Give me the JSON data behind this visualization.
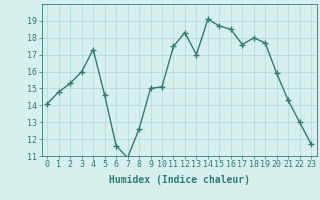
{
  "x": [
    0,
    1,
    2,
    3,
    4,
    5,
    6,
    7,
    8,
    9,
    10,
    11,
    12,
    13,
    14,
    15,
    16,
    17,
    18,
    19,
    20,
    21,
    22,
    23
  ],
  "y": [
    14.1,
    14.8,
    15.3,
    16.0,
    17.3,
    14.6,
    11.6,
    10.9,
    12.6,
    15.0,
    15.1,
    17.5,
    18.3,
    17.0,
    19.1,
    18.7,
    18.5,
    17.6,
    18.0,
    17.7,
    15.9,
    14.3,
    13.0,
    11.7
  ],
  "line_color": "#2e7d6e",
  "marker": "+",
  "marker_size": 4,
  "marker_lw": 1.0,
  "bg_color": "#d6f0ee",
  "grid_color": "#b0d8d4",
  "xlabel": "Humidex (Indice chaleur)",
  "ylim": [
    11,
    20
  ],
  "xlim": [
    -0.5,
    23.5
  ],
  "yticks": [
    11,
    12,
    13,
    14,
    15,
    16,
    17,
    18,
    19
  ],
  "xticks": [
    0,
    1,
    2,
    3,
    4,
    5,
    6,
    7,
    8,
    9,
    10,
    11,
    12,
    13,
    14,
    15,
    16,
    17,
    18,
    19,
    20,
    21,
    22,
    23
  ],
  "axis_color": "#2e7d6e",
  "tick_color": "#2e7d6e",
  "label_color": "#2e7d6e",
  "font_size_xlabel": 7,
  "font_size_ticks": 6,
  "line_width": 1.0
}
